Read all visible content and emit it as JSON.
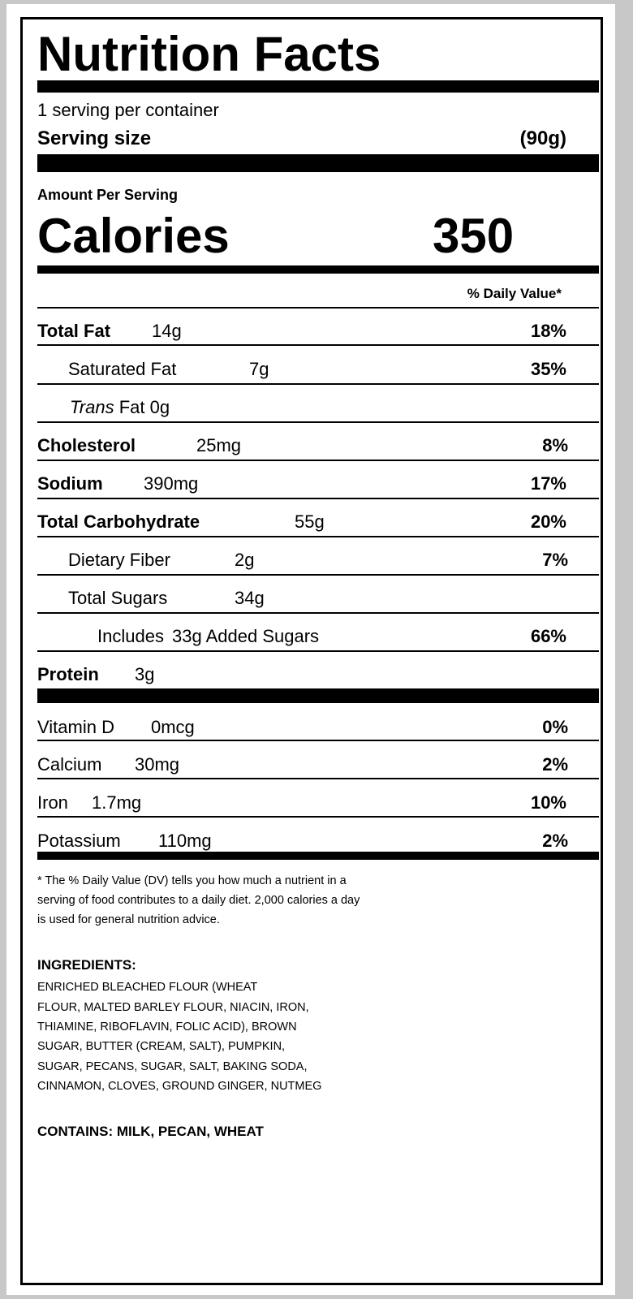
{
  "title": "Nutrition Facts",
  "servings_per_container": "1 serving per container",
  "serving_size_label": "Serving size",
  "serving_size_value": "(90g)",
  "amount_per_serving": "Amount Per Serving",
  "calories_label": "Calories",
  "calories_value": "350",
  "daily_value_header": "% Daily Value*",
  "nutrients": [
    {
      "label": "Total Fat",
      "amount": "14g",
      "dv": "18%"
    },
    {
      "label": "Saturated Fat",
      "amount": "7g",
      "dv": "35%"
    },
    {
      "label_italic": "Trans",
      "label": "Fat 0g",
      "amount": "",
      "dv": ""
    },
    {
      "label": "Cholesterol",
      "amount": "25mg",
      "dv": "8%"
    },
    {
      "label": "Sodium",
      "amount": "390mg",
      "dv": "17%"
    },
    {
      "label": "Total Carbohydrate",
      "amount": "55g",
      "dv": "20%"
    },
    {
      "label": "Dietary Fiber",
      "amount": "2g",
      "dv": "7%"
    },
    {
      "label": "Total Sugars",
      "amount": "34g",
      "dv": ""
    },
    {
      "label": "Includes",
      "amount": "33g Added Sugars",
      "dv": "66%"
    },
    {
      "label": "Protein",
      "amount": "3g",
      "dv": ""
    }
  ],
  "vitamins": [
    {
      "label": "Vitamin D",
      "amount": "0mcg",
      "dv": "0%"
    },
    {
      "label": "Calcium",
      "amount": "30mg",
      "dv": "2%"
    },
    {
      "label": "Iron",
      "amount": "1.7mg",
      "dv": "10%"
    },
    {
      "label": "Potassium",
      "amount": "110mg",
      "dv": "2%"
    }
  ],
  "footnote": [
    "* The % Daily Value (DV) tells you how much a nutrient in a",
    "serving of food contributes to a daily diet. 2,000 calories a day",
    "is used for general nutrition advice."
  ],
  "ingredients_heading": "INGREDIENTS:",
  "ingredients_lines": [
    "ENRICHED BLEACHED FLOUR (WHEAT",
    "FLOUR, MALTED BARLEY FLOUR, NIACIN, IRON,",
    "THIAMINE, RIBOFLAVIN, FOLIC ACID), BROWN",
    "SUGAR, BUTTER (CREAM, SALT), PUMPKIN,",
    "SUGAR, PECANS, SUGAR, SALT, BAKING SODA,",
    "CINNAMON, CLOVES, GROUND GINGER, NUTMEG"
  ],
  "contains": "CONTAINS: MILK, PECAN, WHEAT"
}
